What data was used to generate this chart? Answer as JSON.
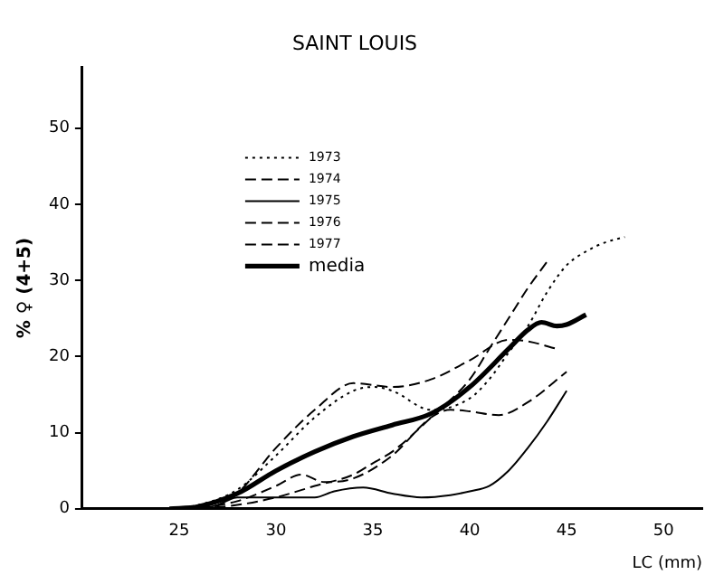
{
  "chart_data": {
    "type": "line",
    "title": "SAINT LOUIS",
    "xlabel": "LC (mm)",
    "ylabel": "% ♀ (4+5)",
    "xlim": [
      20,
      52
    ],
    "xticks": [
      25,
      30,
      35,
      40,
      45,
      50
    ],
    "ylim": [
      0,
      58
    ],
    "yticks": [
      0,
      10,
      20,
      30,
      40,
      50
    ],
    "grid": false,
    "legend": "top left",
    "marker": "none",
    "series": [
      {
        "name": "1973",
        "color": "#000000",
        "line_style": "dotted",
        "x": [
          24.5,
          26,
          28,
          30,
          32,
          34,
          35,
          36,
          38,
          40,
          41,
          42,
          43,
          44,
          45,
          46,
          47,
          48
        ],
        "values": [
          0,
          0.5,
          2.5,
          7,
          12,
          15.5,
          16,
          15.5,
          13,
          14.5,
          17,
          20.5,
          24,
          28.5,
          32,
          33.8,
          35,
          35.7
        ]
      },
      {
        "name": "1974",
        "color": "#000000",
        "line_style": "dashed",
        "x": [
          26,
          28,
          30,
          32,
          34,
          35,
          36,
          38,
          40,
          41,
          42,
          43,
          44
        ],
        "values": [
          0,
          0.5,
          1.5,
          3,
          4.5,
          6,
          7.5,
          12,
          17,
          21,
          25,
          29,
          32.5
        ]
      },
      {
        "name": "1975",
        "color": "#000000",
        "line_style": "solid",
        "x": [
          26,
          27,
          28,
          30,
          32,
          33,
          34.5,
          36,
          37.5,
          39,
          40,
          41,
          42,
          43,
          44,
          45
        ],
        "values": [
          0,
          0.5,
          1.5,
          1.5,
          1.5,
          2.3,
          2.8,
          2,
          1.5,
          1.8,
          2.3,
          3,
          5,
          8,
          11.5,
          15.5
        ]
      },
      {
        "name": "1976",
        "color": "#000000",
        "line_style": "dashed",
        "x": [
          26,
          27,
          28,
          30,
          32,
          34,
          36,
          38,
          40,
          42,
          43,
          44.5
        ],
        "values": [
          0,
          0.5,
          2,
          8,
          13,
          16.5,
          16,
          17,
          19.5,
          22.2,
          22,
          21
        ]
      },
      {
        "name": "1977",
        "color": "#000000",
        "line_style": "dashed",
        "x": [
          26,
          28,
          30,
          31.3,
          32.5,
          34,
          36,
          38,
          39,
          40,
          41.5,
          43,
          45
        ],
        "values": [
          0,
          1,
          3,
          4.5,
          3.5,
          4,
          7,
          12,
          13,
          12.8,
          12.3,
          14,
          18
        ]
      },
      {
        "name": "media",
        "color": "#000000",
        "line_style": "solid",
        "x": [
          24.5,
          26,
          28,
          30,
          32,
          34,
          36,
          38,
          40,
          42,
          43,
          43.7,
          44.5,
          45,
          46
        ],
        "values": [
          0,
          0.3,
          2,
          5,
          7.5,
          9.5,
          11,
          12.5,
          16,
          21,
          23.5,
          24.5,
          24,
          24.2,
          25.5
        ]
      }
    ]
  }
}
